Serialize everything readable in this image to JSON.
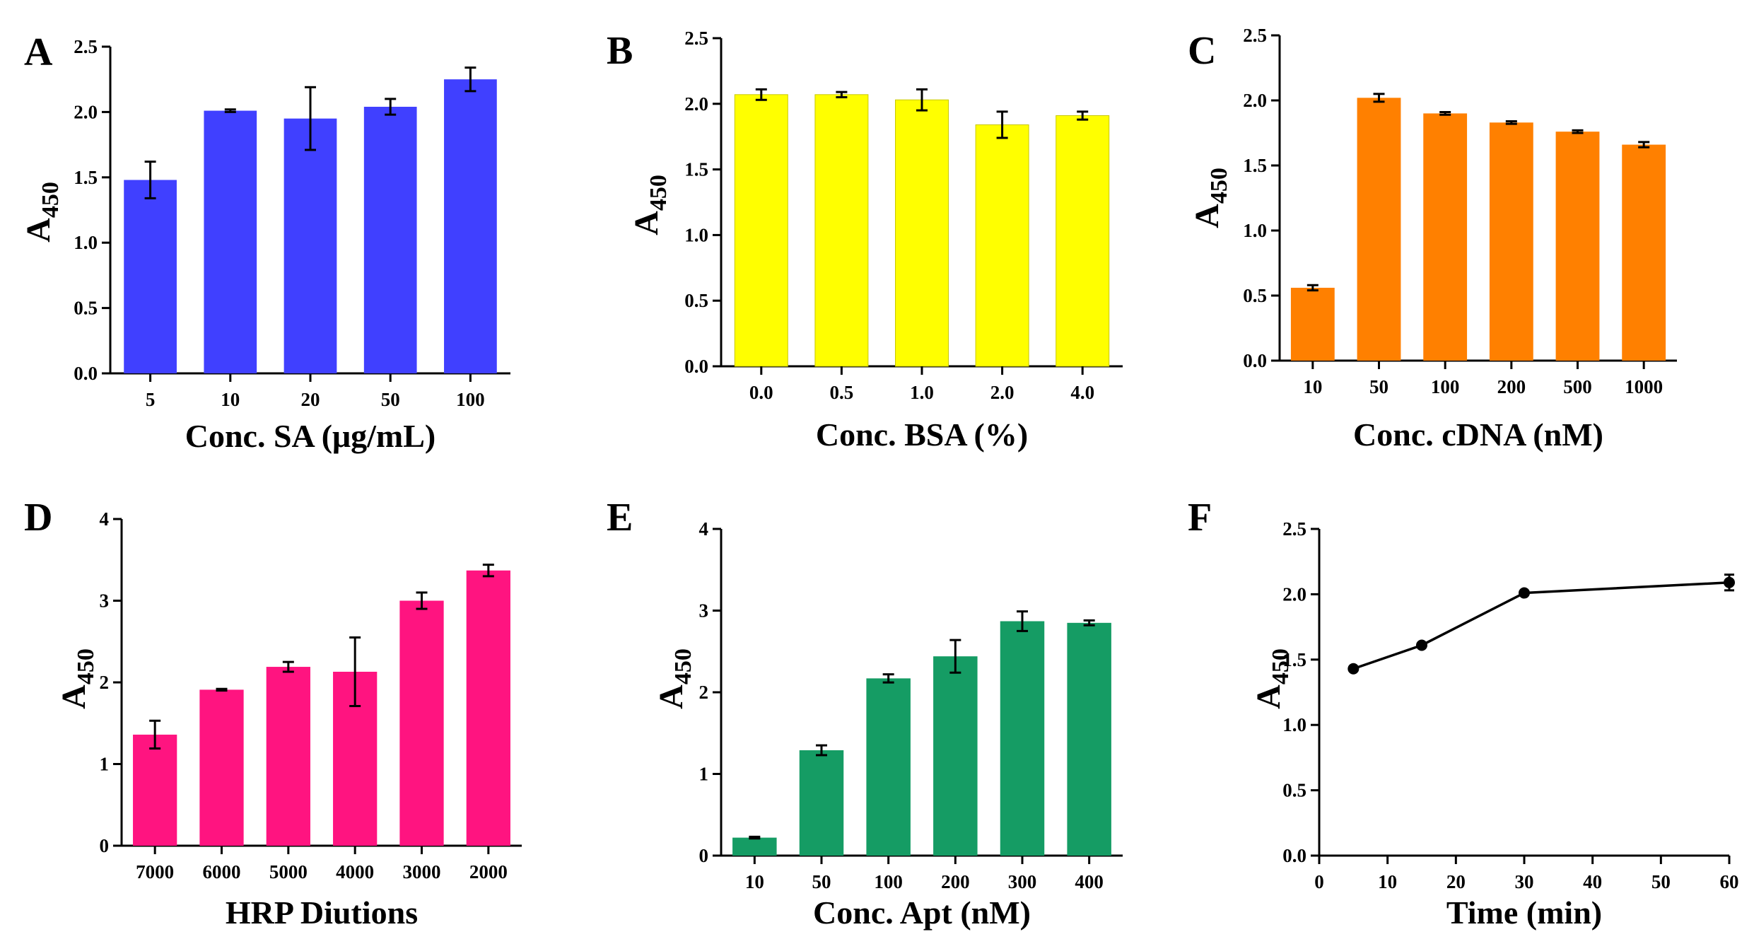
{
  "chart_data": [
    {
      "panel": "A",
      "type": "bar",
      "categories": [
        "5",
        "10",
        "20",
        "50",
        "100"
      ],
      "values": [
        1.48,
        2.01,
        1.95,
        2.04,
        2.25
      ],
      "errors": [
        0.14,
        0.01,
        0.24,
        0.06,
        0.09
      ],
      "color": "#4040ff",
      "ylabel": "A",
      "ylabel_sub": "450",
      "xlabel": "Conc. SA (μg/mL)",
      "ylim": [
        0,
        2.5
      ],
      "yticks": [
        "0.0",
        "0.5",
        "1.0",
        "1.5",
        "2.0",
        "2.5"
      ]
    },
    {
      "panel": "B",
      "type": "bar",
      "categories": [
        "0.0",
        "0.5",
        "1.0",
        "2.0",
        "4.0"
      ],
      "values": [
        2.07,
        2.07,
        2.03,
        1.84,
        1.91
      ],
      "errors": [
        0.04,
        0.02,
        0.08,
        0.1,
        0.03
      ],
      "color": "#ffff00",
      "ylabel": "A",
      "ylabel_sub": "450",
      "xlabel": "Conc. BSA (%)",
      "ylim": [
        0,
        2.5
      ],
      "yticks": [
        "0.0",
        "0.5",
        "1.0",
        "1.5",
        "2.0",
        "2.5"
      ]
    },
    {
      "panel": "C",
      "type": "bar",
      "categories": [
        "10",
        "50",
        "100",
        "200",
        "500",
        "1000"
      ],
      "values": [
        0.56,
        2.02,
        1.9,
        1.83,
        1.76,
        1.66
      ],
      "errors": [
        0.02,
        0.03,
        0.01,
        0.01,
        0.01,
        0.02
      ],
      "color": "#ff8000",
      "ylabel": "A",
      "ylabel_sub": "450",
      "xlabel": "Conc. cDNA (nM)",
      "ylim": [
        0,
        2.5
      ],
      "yticks": [
        "0.0",
        "0.5",
        "1.0",
        "1.5",
        "2.0",
        "2.5"
      ]
    },
    {
      "panel": "D",
      "type": "bar",
      "categories": [
        "7000",
        "6000",
        "5000",
        "4000",
        "3000",
        "2000"
      ],
      "values": [
        1.36,
        1.91,
        2.19,
        2.13,
        3.0,
        3.37
      ],
      "errors": [
        0.17,
        0.01,
        0.06,
        0.42,
        0.1,
        0.07
      ],
      "color": "#ff1480",
      "ylabel": "A",
      "ylabel_sub": "450",
      "xlabel": "HRP Diutions",
      "ylim": [
        0,
        4
      ],
      "yticks": [
        "0",
        "1",
        "2",
        "3",
        "4"
      ]
    },
    {
      "panel": "E",
      "type": "bar",
      "categories": [
        "10",
        "50",
        "100",
        "200",
        "300",
        "400"
      ],
      "values": [
        0.22,
        1.29,
        2.17,
        2.44,
        2.87,
        2.85
      ],
      "errors": [
        0.01,
        0.06,
        0.05,
        0.2,
        0.12,
        0.03
      ],
      "color": "#159c64",
      "ylabel": "A",
      "ylabel_sub": "450",
      "xlabel": "Conc. Apt (nM)",
      "ylim": [
        0,
        4
      ],
      "yticks": [
        "0",
        "1",
        "2",
        "3",
        "4"
      ]
    },
    {
      "panel": "F",
      "type": "line",
      "x": [
        5,
        15,
        30,
        60
      ],
      "values": [
        1.43,
        1.61,
        2.01,
        2.09
      ],
      "errors": [
        0.01,
        0.01,
        0.01,
        0.06
      ],
      "color": "#000000",
      "ylabel": "A",
      "ylabel_sub": "450",
      "xlabel": "Time (min)",
      "xlim": [
        0,
        60
      ],
      "ylim": [
        0,
        2.5
      ],
      "xticks": [
        "0",
        "10",
        "20",
        "30",
        "40",
        "50",
        "60"
      ],
      "yticks": [
        "0.0",
        "0.5",
        "1.0",
        "1.5",
        "2.0",
        "2.5"
      ]
    }
  ]
}
